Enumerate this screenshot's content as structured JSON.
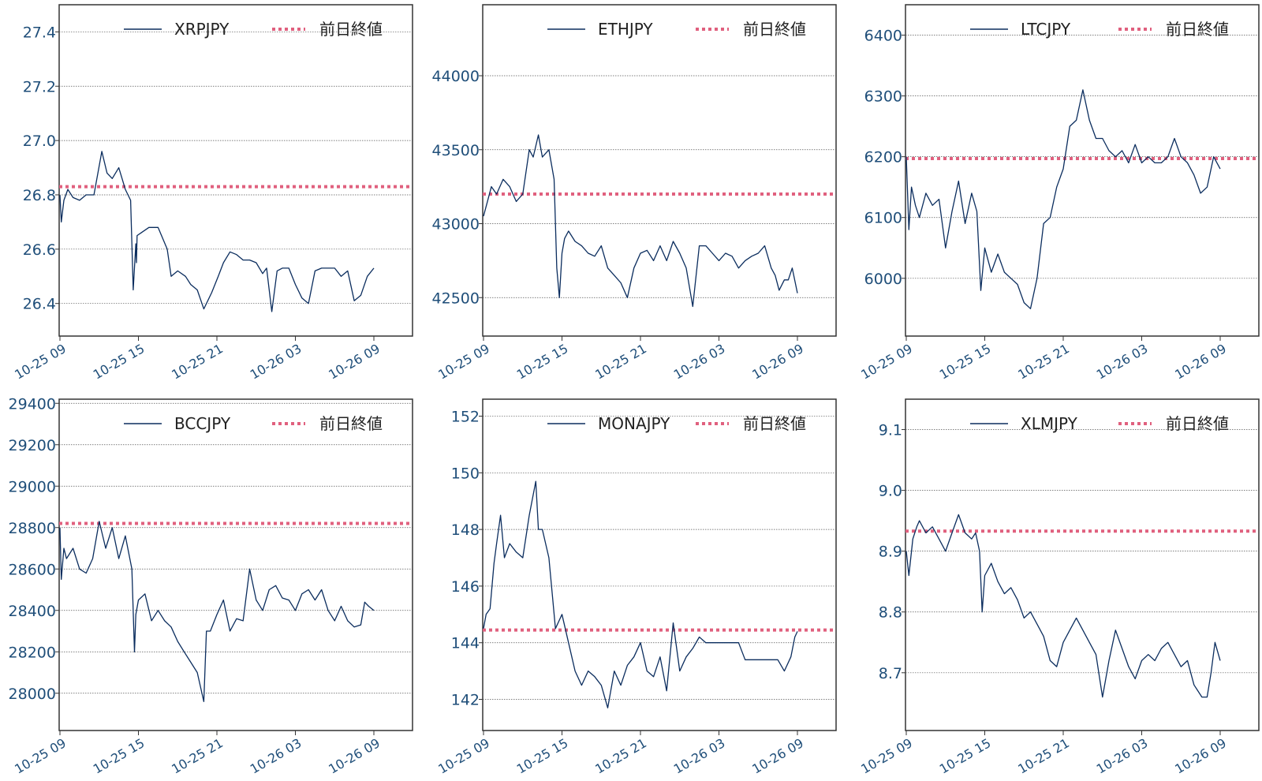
{
  "colors": {
    "line": "#0b2d5e",
    "prev_close": "#e0607e",
    "grid": "#555555",
    "tick": "#1f4e79"
  },
  "prev_close_label": "前日終値",
  "x_tick_labels": [
    "10-25 09",
    "10-25 15",
    "10-25 21",
    "10-26 03",
    "10-26 09"
  ],
  "chart_data": [
    {
      "type": "line",
      "series_name": "XRPJPY",
      "prev_close": 26.83,
      "ylim": [
        26.28,
        27.5
      ],
      "yticks": [
        26.4,
        26.6,
        26.8,
        27.0,
        27.2,
        27.4
      ],
      "ytick_labels": [
        "26.4",
        "26.6",
        "26.8",
        "27.0",
        "27.2",
        "27.4"
      ],
      "x": [
        0,
        0.1,
        0.3,
        0.6,
        1.0,
        1.5,
        2.0,
        2.6,
        3.2,
        3.6,
        4.0,
        4.5,
        5.0,
        5.4,
        5.6,
        5.8,
        5.85,
        5.9,
        6.2,
        6.8,
        7.5,
        8.2,
        8.5,
        9.0,
        9.6,
        10.0,
        10.5,
        11.0,
        11.6,
        12.1,
        12.5,
        13.0,
        13.5,
        14.0,
        14.5,
        15.0,
        15.5,
        15.8,
        16.2,
        16.6,
        17.0,
        17.5,
        18.0,
        18.5,
        19.0,
        19.5,
        20.0,
        20.5,
        21.0,
        21.5,
        22.0,
        22.5,
        23.0,
        23.5,
        24.0
      ],
      "y": [
        26.8,
        26.7,
        26.78,
        26.82,
        26.79,
        26.78,
        26.8,
        26.8,
        26.96,
        26.88,
        26.86,
        26.9,
        26.82,
        26.78,
        26.45,
        26.62,
        26.55,
        26.65,
        26.66,
        26.68,
        26.68,
        26.6,
        26.5,
        26.52,
        26.5,
        26.47,
        26.45,
        26.38,
        26.44,
        26.5,
        26.55,
        26.59,
        26.58,
        26.56,
        26.56,
        26.55,
        26.51,
        26.53,
        26.37,
        26.52,
        26.53,
        26.53,
        26.47,
        26.42,
        26.4,
        26.52,
        26.53,
        26.53,
        26.53,
        26.5,
        26.52,
        26.41,
        26.43,
        26.5,
        26.53
      ]
    },
    {
      "type": "line",
      "series_name": "ETHJPY",
      "prev_close": 43200,
      "ylim": [
        42240,
        44480
      ],
      "yticks": [
        42500,
        43000,
        43500,
        44000
      ],
      "ytick_labels": [
        "42500",
        "43000",
        "43500",
        "44000"
      ],
      "x": [
        0,
        0.3,
        0.6,
        1.0,
        1.5,
        2.0,
        2.5,
        3.0,
        3.5,
        3.8,
        4.2,
        4.5,
        5.0,
        5.4,
        5.6,
        5.8,
        6.0,
        6.2,
        6.5,
        7.0,
        7.5,
        8.0,
        8.5,
        9.0,
        9.5,
        10.0,
        10.5,
        11.0,
        11.5,
        12.0,
        12.5,
        13.0,
        13.5,
        14.0,
        14.5,
        15.0,
        15.5,
        16.0,
        16.5,
        17.0,
        17.5,
        18.0,
        18.5,
        19.0,
        19.5,
        20.0,
        20.5,
        21.0,
        21.5,
        22.0,
        22.3,
        22.6,
        23.0,
        23.3,
        23.6,
        24.0
      ],
      "y": [
        43050,
        43150,
        43250,
        43200,
        43300,
        43250,
        43150,
        43200,
        43500,
        43450,
        43600,
        43450,
        43500,
        43300,
        42700,
        42500,
        42800,
        42900,
        42950,
        42880,
        42850,
        42800,
        42780,
        42850,
        42700,
        42650,
        42600,
        42500,
        42700,
        42800,
        42820,
        42750,
        42850,
        42750,
        42880,
        42800,
        42700,
        42440,
        42850,
        42850,
        42800,
        42750,
        42800,
        42780,
        42700,
        42750,
        42780,
        42800,
        42850,
        42700,
        42650,
        42550,
        42620,
        42620,
        42700,
        42530
      ]
    },
    {
      "type": "line",
      "series_name": "LTCJPY",
      "prev_close": 6197,
      "ylim": [
        5905,
        6450
      ],
      "yticks": [
        6000,
        6100,
        6200,
        6300,
        6400
      ],
      "ytick_labels": [
        "6000",
        "6100",
        "6200",
        "6300",
        "6400"
      ],
      "x": [
        0,
        0.2,
        0.4,
        0.7,
        1.0,
        1.5,
        2.0,
        2.5,
        3.0,
        3.5,
        4.0,
        4.5,
        5.0,
        5.4,
        5.7,
        6.0,
        6.5,
        7.0,
        7.5,
        8.0,
        8.5,
        9.0,
        9.5,
        10.0,
        10.5,
        11.0,
        11.5,
        12.0,
        12.5,
        13.0,
        13.5,
        14.0,
        14.5,
        15.0,
        15.5,
        16.0,
        16.5,
        17.0,
        17.5,
        18.0,
        18.5,
        19.0,
        19.5,
        20.0,
        20.5,
        21.0,
        21.5,
        22.0,
        22.5,
        23.0,
        23.5,
        24.0
      ],
      "y": [
        6200,
        6080,
        6150,
        6120,
        6100,
        6140,
        6120,
        6130,
        6050,
        6110,
        6160,
        6090,
        6140,
        6110,
        5980,
        6050,
        6010,
        6040,
        6010,
        6000,
        5990,
        5960,
        5950,
        6000,
        6090,
        6100,
        6150,
        6180,
        6250,
        6260,
        6310,
        6260,
        6230,
        6230,
        6210,
        6200,
        6210,
        6190,
        6220,
        6190,
        6200,
        6190,
        6190,
        6200,
        6230,
        6200,
        6190,
        6170,
        6140,
        6150,
        6200,
        6180
      ]
    },
    {
      "type": "line",
      "series_name": "BCCJPY",
      "prev_close": 28820,
      "ylim": [
        27820,
        29420
      ],
      "yticks": [
        28000,
        28200,
        28400,
        28600,
        28800,
        29000,
        29200,
        29400
      ],
      "ytick_labels": [
        "28000",
        "28200",
        "28400",
        "28600",
        "28800",
        "29000",
        "29200",
        "29400"
      ],
      "x": [
        0,
        0.1,
        0.3,
        0.5,
        1.0,
        1.5,
        2.0,
        2.5,
        3.0,
        3.5,
        4.0,
        4.5,
        5.0,
        5.5,
        5.7,
        5.8,
        6.0,
        6.5,
        7.0,
        7.5,
        8.0,
        8.5,
        9.0,
        9.5,
        10.0,
        10.5,
        11.0,
        11.2,
        11.5,
        12.0,
        12.5,
        13.0,
        13.5,
        14.0,
        14.5,
        15.0,
        15.5,
        16.0,
        16.5,
        17.0,
        17.5,
        18.0,
        18.5,
        19.0,
        19.5,
        20.0,
        20.5,
        21.0,
        21.5,
        22.0,
        22.5,
        23.0,
        23.3,
        23.6,
        24.0
      ],
      "y": [
        28800,
        28550,
        28700,
        28650,
        28700,
        28600,
        28580,
        28650,
        28830,
        28700,
        28800,
        28650,
        28760,
        28600,
        28200,
        28380,
        28450,
        28480,
        28350,
        28400,
        28350,
        28320,
        28250,
        28200,
        28150,
        28100,
        27960,
        28300,
        28300,
        28380,
        28450,
        28300,
        28360,
        28350,
        28600,
        28450,
        28400,
        28500,
        28520,
        28460,
        28450,
        28400,
        28480,
        28500,
        28450,
        28500,
        28400,
        28350,
        28420,
        28350,
        28320,
        28330,
        28440,
        28420,
        28400
      ]
    },
    {
      "type": "line",
      "series_name": "MONAJPY",
      "prev_close": 144.45,
      "ylim": [
        140.9,
        152.6
      ],
      "yticks": [
        142,
        144,
        146,
        148,
        150,
        152
      ],
      "ytick_labels": [
        "142",
        "144",
        "146",
        "148",
        "150",
        "152"
      ],
      "x": [
        0,
        0.2,
        0.5,
        0.8,
        1.0,
        1.3,
        1.6,
        2.0,
        2.5,
        3.0,
        3.5,
        4.0,
        4.2,
        4.5,
        5.0,
        5.3,
        5.5,
        5.8,
        6.0,
        6.5,
        7.0,
        7.5,
        8.0,
        8.5,
        9.0,
        9.5,
        10.0,
        10.5,
        11.0,
        11.5,
        12.0,
        12.5,
        13.0,
        13.5,
        14.0,
        14.5,
        15.0,
        15.5,
        16.0,
        16.5,
        17.0,
        17.5,
        18.0,
        18.5,
        19.0,
        19.5,
        20.0,
        20.5,
        21.0,
        21.5,
        22.0,
        22.5,
        23.0,
        23.5,
        23.8,
        24.0
      ],
      "y": [
        144.5,
        145.0,
        145.2,
        146.8,
        147.5,
        148.5,
        147.0,
        147.5,
        147.2,
        147.0,
        148.5,
        149.7,
        148.0,
        148.0,
        147.0,
        145.5,
        144.5,
        144.8,
        145.0,
        144.0,
        143.0,
        142.5,
        143.0,
        142.8,
        142.5,
        141.7,
        143.0,
        142.5,
        143.2,
        143.5,
        144.0,
        143.0,
        142.8,
        143.5,
        142.3,
        144.7,
        143.0,
        143.5,
        143.8,
        144.2,
        144.0,
        144.0,
        144.0,
        144.0,
        144.0,
        144.0,
        143.4,
        143.4,
        143.4,
        143.4,
        143.4,
        143.4,
        143.0,
        143.5,
        144.2,
        144.4
      ]
    },
    {
      "type": "line",
      "series_name": "XLMJPY",
      "prev_close": 8.933,
      "ylim": [
        8.605,
        9.15
      ],
      "yticks": [
        8.7,
        8.8,
        8.9,
        9.0,
        9.1
      ],
      "ytick_labels": [
        "8.7",
        "8.8",
        "8.9",
        "9.0",
        "9.1"
      ],
      "x": [
        0,
        0.2,
        0.5,
        0.8,
        1.0,
        1.5,
        2.0,
        2.5,
        3.0,
        3.5,
        4.0,
        4.5,
        5.0,
        5.3,
        5.6,
        5.8,
        6.0,
        6.5,
        7.0,
        7.5,
        8.0,
        8.5,
        9.0,
        9.5,
        10.0,
        10.5,
        11.0,
        11.5,
        12.0,
        12.5,
        13.0,
        13.5,
        14.0,
        14.5,
        15.0,
        15.5,
        16.0,
        16.5,
        17.0,
        17.5,
        18.0,
        18.5,
        19.0,
        19.5,
        20.0,
        20.5,
        21.0,
        21.5,
        22.0,
        22.3,
        22.6,
        23.0,
        23.3,
        23.6,
        24.0
      ],
      "y": [
        8.9,
        8.86,
        8.92,
        8.94,
        8.95,
        8.93,
        8.94,
        8.92,
        8.9,
        8.93,
        8.96,
        8.93,
        8.92,
        8.93,
        8.9,
        8.8,
        8.86,
        8.88,
        8.85,
        8.83,
        8.84,
        8.82,
        8.79,
        8.8,
        8.78,
        8.76,
        8.72,
        8.71,
        8.75,
        8.77,
        8.79,
        8.77,
        8.75,
        8.73,
        8.66,
        8.72,
        8.77,
        8.74,
        8.71,
        8.69,
        8.72,
        8.73,
        8.72,
        8.74,
        8.75,
        8.73,
        8.71,
        8.72,
        8.68,
        8.67,
        8.66,
        8.66,
        8.7,
        8.75,
        8.72
      ]
    }
  ]
}
